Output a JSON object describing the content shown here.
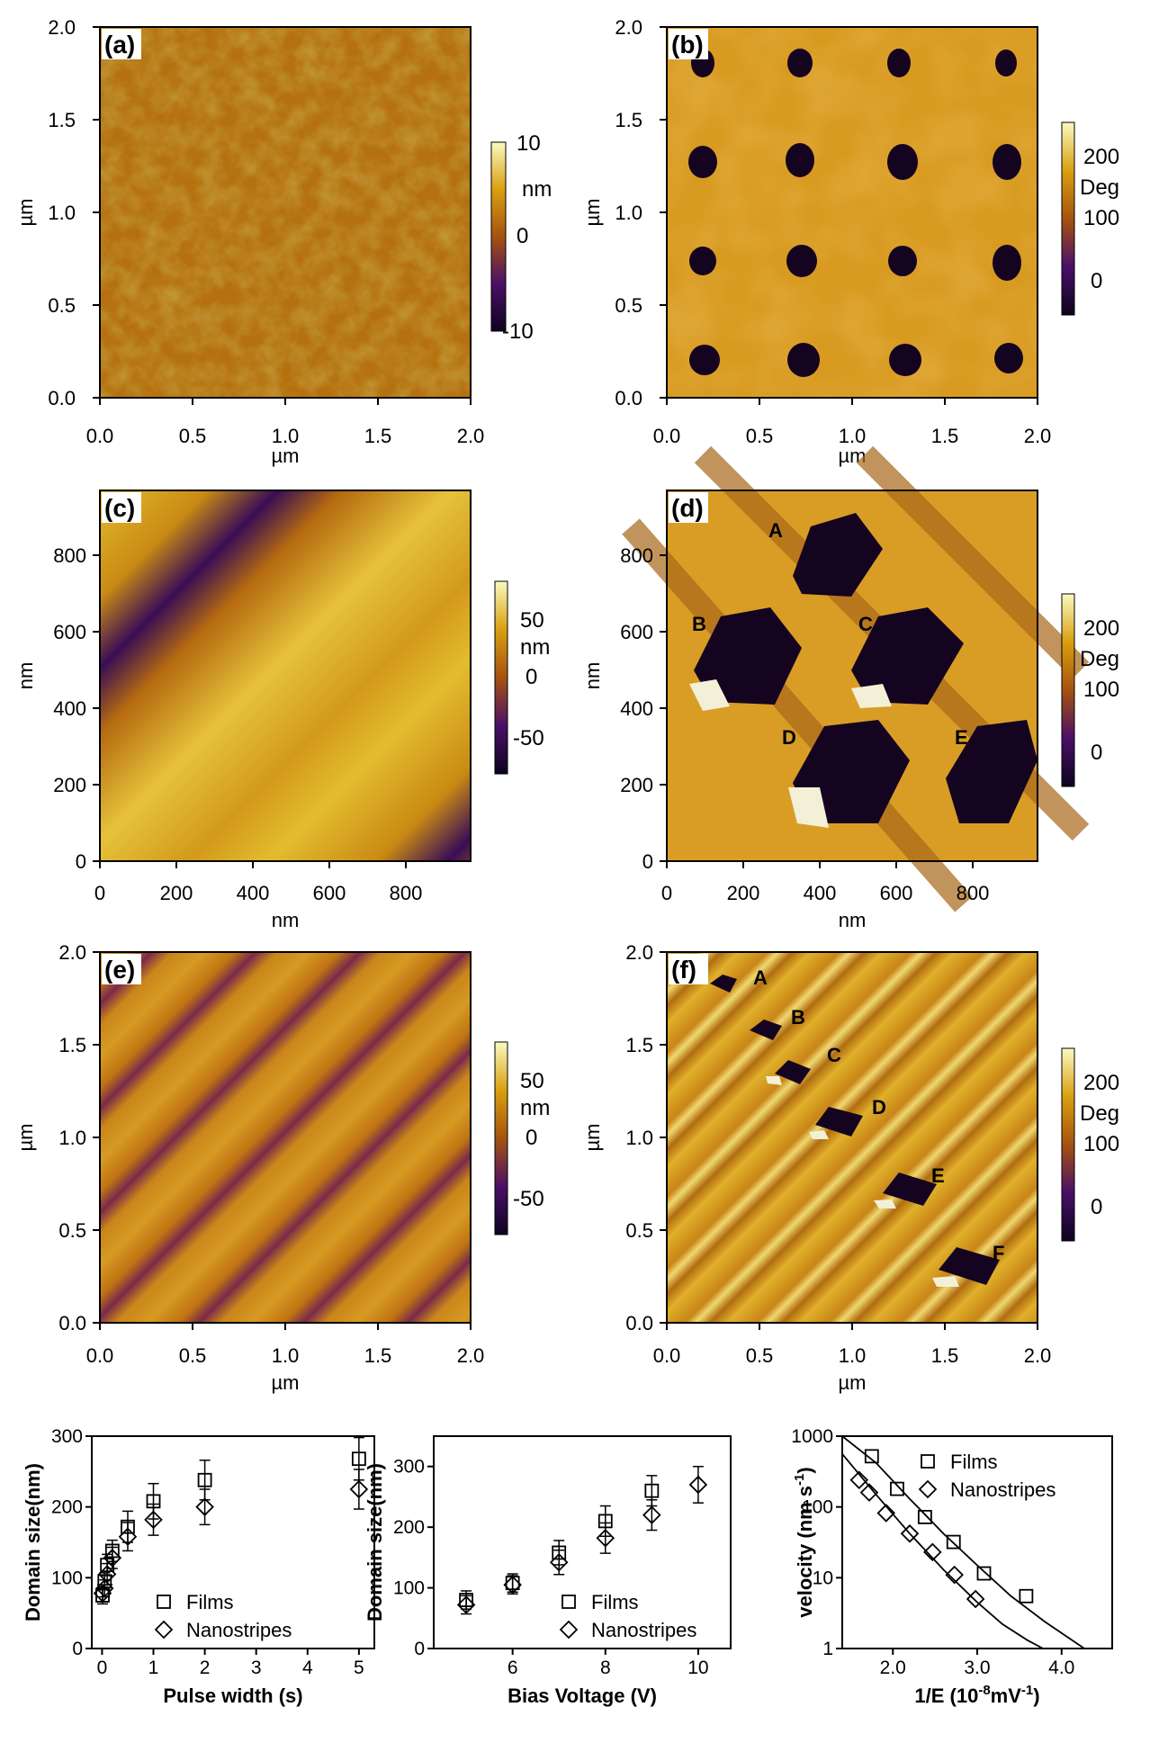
{
  "panels": {
    "a": {
      "label": "(a)",
      "kind": "height",
      "xticks": [
        "0.0",
        "0.5",
        "1.0",
        "1.5",
        "2.0"
      ],
      "yticks": [
        "0.0",
        "0.5",
        "1.0",
        "1.5",
        "2.0"
      ],
      "xlabel": "µm",
      "ylabel": "µm",
      "colorbar": {
        "ticks": [
          "10",
          "0",
          "-10"
        ],
        "unit": "nm"
      }
    },
    "b": {
      "label": "(b)",
      "kind": "phase",
      "xticks": [
        "0.0",
        "0.5",
        "1.0",
        "1.5",
        "2.0"
      ],
      "yticks": [
        "0.0",
        "0.5",
        "1.0",
        "1.5",
        "2.0"
      ],
      "xlabel": "µm",
      "ylabel": "µm",
      "colorbar": {
        "ticks": [
          "200",
          "100",
          "0"
        ],
        "unit": "Deg"
      }
    },
    "c": {
      "label": "(c)",
      "kind": "height",
      "xticks": [
        "0",
        "200",
        "400",
        "600",
        "800"
      ],
      "yticks": [
        "0",
        "200",
        "400",
        "600",
        "800"
      ],
      "xlabel": "nm",
      "ylabel": "nm",
      "colorbar": {
        "ticks": [
          "50",
          "0",
          "-50"
        ],
        "unit": "nm"
      }
    },
    "d": {
      "label": "(d)",
      "kind": "phase",
      "xticks": [
        "0",
        "200",
        "400",
        "600",
        "800"
      ],
      "yticks": [
        "0",
        "200",
        "400",
        "600",
        "800"
      ],
      "xlabel": "nm",
      "ylabel": "nm",
      "colorbar": {
        "ticks": [
          "200",
          "100",
          "0"
        ],
        "unit": "Deg"
      },
      "domain_labels": [
        "A",
        "B",
        "C",
        "D",
        "E"
      ]
    },
    "e": {
      "label": "(e)",
      "kind": "height",
      "xticks": [
        "0.0",
        "0.5",
        "1.0",
        "1.5",
        "2.0"
      ],
      "yticks": [
        "0.0",
        "0.5",
        "1.0",
        "1.5",
        "2.0"
      ],
      "xlabel": "µm",
      "ylabel": "µm",
      "colorbar": {
        "ticks": [
          "50",
          "0",
          "-50"
        ],
        "unit": "nm"
      }
    },
    "f": {
      "label": "(f)",
      "kind": "phase",
      "xticks": [
        "0.0",
        "0.5",
        "1.0",
        "1.5",
        "2.0"
      ],
      "yticks": [
        "0.0",
        "0.5",
        "1.0",
        "1.5",
        "2.0"
      ],
      "xlabel": "µm",
      "ylabel": "µm",
      "colorbar": {
        "ticks": [
          "200",
          "100",
          "0"
        ],
        "unit": "Deg"
      },
      "domain_labels": [
        "A",
        "B",
        "C",
        "D",
        "E",
        "F"
      ]
    }
  },
  "chart_data": [
    {
      "type": "scatter",
      "xlabel": "Pulse width (s)",
      "ylabel": "Domain size(nm)",
      "xlim": [
        -0.2,
        5.3
      ],
      "ylim": [
        0,
        300
      ],
      "xticks": [
        "0",
        "1",
        "2",
        "3",
        "4",
        "5"
      ],
      "yticks": [
        "0",
        "100",
        "200",
        "300"
      ],
      "legend": {
        "position": "bottom-center",
        "entries": [
          "Films",
          "Nanostripes"
        ]
      },
      "series": [
        {
          "name": "Films",
          "marker": "square",
          "x": [
            0.01,
            0.05,
            0.1,
            0.2,
            0.5,
            1,
            2,
            5
          ],
          "y": [
            75,
            95,
            118,
            138,
            172,
            208,
            238,
            268
          ],
          "err": [
            12,
            12,
            15,
            15,
            22,
            25,
            28,
            30
          ]
        },
        {
          "name": "Nanostripes",
          "marker": "diamond",
          "x": [
            0.01,
            0.05,
            0.1,
            0.2,
            0.5,
            1,
            2,
            5
          ],
          "y": [
            78,
            85,
            105,
            128,
            158,
            182,
            200,
            225
          ],
          "err": [
            12,
            12,
            15,
            15,
            20,
            22,
            25,
            28
          ]
        }
      ]
    },
    {
      "type": "scatter",
      "xlabel": "Bias Voltage (V)",
      "ylabel": "Domain size(nm)",
      "xlim": [
        4.3,
        10.7
      ],
      "ylim": [
        0,
        350
      ],
      "xticks": [
        "6",
        "8",
        "10"
      ],
      "yticks": [
        "0",
        "100",
        "200",
        "300"
      ],
      "legend": {
        "position": "bottom-right",
        "entries": [
          "Films",
          "Nanostripes"
        ]
      },
      "series": [
        {
          "name": "Films",
          "marker": "square",
          "x": [
            5,
            6,
            7,
            8,
            9
          ],
          "y": [
            80,
            108,
            158,
            210,
            260
          ],
          "err": [
            15,
            15,
            20,
            25,
            25
          ]
        },
        {
          "name": "Nanostripes",
          "marker": "diamond",
          "x": [
            5,
            6,
            7,
            8,
            9,
            10
          ],
          "y": [
            72,
            105,
            142,
            182,
            220,
            270
          ],
          "err": [
            15,
            15,
            20,
            25,
            25,
            30
          ]
        }
      ]
    },
    {
      "type": "scatter",
      "xlabel": "1/E (10-8mV-1)",
      "xlabel_main": "1/E (10",
      "xlabel_exp1": "-8",
      "xlabel_mid": "mV",
      "xlabel_exp2": "-1",
      "xlabel_end": ")",
      "ylabel": "velocity (nm s-1)",
      "ylabel_main": "velocity (nm s",
      "ylabel_exp": "-1",
      "ylabel_end": ")",
      "xlim": [
        1.4,
        4.6
      ],
      "ylim": [
        1,
        1000
      ],
      "yscale": "log",
      "xticks": [
        "2.0",
        "3.0",
        "4.0"
      ],
      "yticks": [
        "1",
        "10",
        "100",
        "1000"
      ],
      "legend": {
        "position": "top-right",
        "entries": [
          "Films",
          "Nanostripes"
        ]
      },
      "series": [
        {
          "name": "Films",
          "marker": "square",
          "x": [
            1.75,
            2.05,
            2.38,
            2.72,
            3.08,
            3.58
          ],
          "y": [
            520,
            180,
            72,
            32,
            11.5,
            5.5
          ]
        },
        {
          "name": "Nanostripes",
          "marker": "diamond",
          "x": [
            1.6,
            1.72,
            1.92,
            2.2,
            2.47,
            2.73,
            2.98
          ],
          "y": [
            240,
            160,
            82,
            42,
            23,
            11,
            5
          ]
        }
      ],
      "fit_curves": [
        {
          "x": [
            1.4,
            1.8,
            2.2,
            2.6,
            3.0,
            3.4,
            3.8,
            4.27
          ],
          "y": [
            1000,
            420,
            130,
            42,
            15,
            5.5,
            2.4,
            1
          ]
        },
        {
          "x": [
            1.4,
            1.8,
            2.2,
            2.6,
            3.0,
            3.3,
            3.6,
            3.78
          ],
          "y": [
            560,
            150,
            42,
            13,
            4.5,
            2.2,
            1.3,
            1
          ]
        }
      ]
    }
  ]
}
